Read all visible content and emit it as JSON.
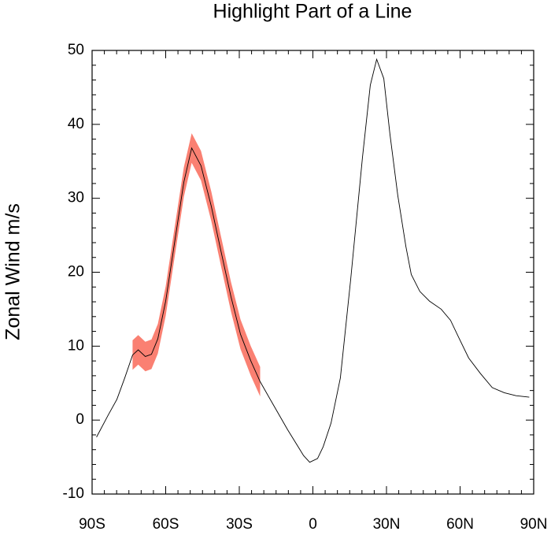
{
  "chart_data": {
    "type": "line",
    "title": "Highlight Part of a Line",
    "ylabel": "Zonal Wind m/s",
    "x": [
      -88.2,
      -83.4,
      -79.9,
      -76.7,
      -73.5,
      -71.2,
      -68.3,
      -65.8,
      -63.2,
      -60,
      -56.8,
      -52.6,
      -49.4,
      -45.6,
      -41.4,
      -37.5,
      -33.4,
      -29.5,
      -25.3,
      -21.5,
      -16.7,
      -10.3,
      -3.8,
      -1.3,
      1.9,
      4.2,
      7.4,
      11.2,
      15.4,
      20.2,
      23.4,
      26,
      28.9,
      31.4,
      34.6,
      37.9,
      40.1,
      43.6,
      47.5,
      52.3,
      56.1,
      59.4,
      63.5,
      68.3,
      73.1,
      78,
      82.8,
      88.2
    ],
    "series": [
      {
        "color": "#000000",
        "values": [
          -2.3,
          0.7,
          2.8,
          5.7,
          8.8,
          9.5,
          8.6,
          8.9,
          11,
          16.1,
          23.1,
          32.2,
          36.8,
          34.4,
          28.9,
          22.9,
          16.7,
          11.6,
          8,
          5.2,
          2.4,
          -1.3,
          -4.8,
          -5.7,
          -5.2,
          -3.6,
          -0.4,
          5.7,
          19,
          35.5,
          45.3,
          48.8,
          46.2,
          38.7,
          30.4,
          23.5,
          19.7,
          17.4,
          16.1,
          15,
          13.5,
          11.2,
          8.4,
          6.3,
          4.4,
          3.7,
          3.3,
          3.1
        ]
      }
    ],
    "highlight": {
      "color": "#fa8072",
      "x": [
        -73.5,
        -71.2,
        -68.3,
        -65.8,
        -63.2,
        -60,
        -56.8,
        -52.6,
        -49.4,
        -45.6,
        -41.4,
        -37.5,
        -33.4,
        -29.5,
        -25.3,
        -21.5
      ],
      "upper": [
        10.8,
        11.5,
        10.6,
        10.9,
        13,
        18.1,
        25.1,
        34.2,
        38.8,
        36.4,
        30.9,
        24.9,
        18.7,
        13.6,
        10,
        7.2
      ],
      "lower": [
        6.8,
        7.5,
        6.6,
        6.9,
        9,
        14.1,
        21.1,
        30.2,
        34.8,
        32.4,
        26.9,
        20.9,
        14.7,
        9.6,
        6,
        3.2
      ]
    },
    "xlim": [
      -90,
      90
    ],
    "xticks": [
      {
        "value": -90,
        "label": "90S"
      },
      {
        "value": -60,
        "label": "60S"
      },
      {
        "value": -30,
        "label": "30S"
      },
      0,
      {
        "value": 30,
        "label": "30N"
      },
      {
        "value": 60,
        "label": "60N"
      },
      {
        "value": 90,
        "label": "90N"
      }
    ],
    "ylim": [
      -10,
      50
    ],
    "yticks": [
      -10,
      0,
      10,
      20,
      30,
      40,
      50
    ]
  }
}
